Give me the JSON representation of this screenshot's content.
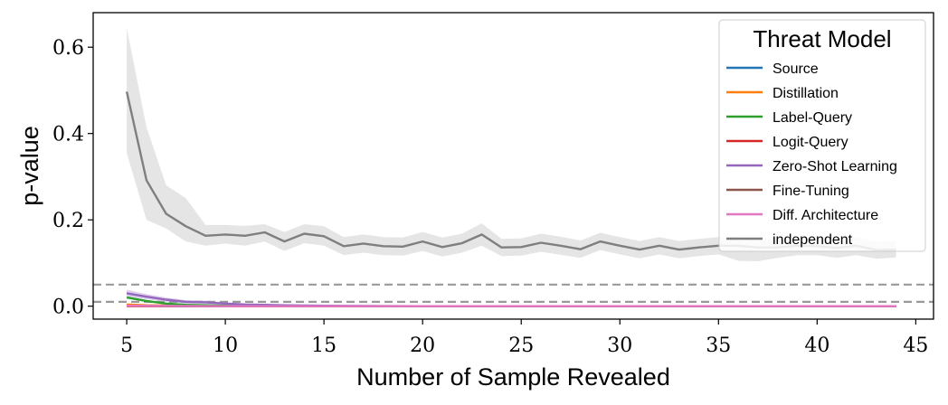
{
  "chart_data": {
    "type": "line",
    "xlabel": "Number of Sample Revealed",
    "ylabel": "p-value",
    "xlim": [
      3.3,
      45.9
    ],
    "ylim": [
      -0.03,
      0.68
    ],
    "xticks": [
      5,
      10,
      15,
      20,
      25,
      30,
      35,
      40,
      45
    ],
    "yticks": [
      0.0,
      0.2,
      0.4,
      0.6
    ],
    "ytick_labels": [
      "0.0",
      "0.2",
      "0.4",
      "0.6"
    ],
    "reference_lines": [
      0.05,
      0.01
    ],
    "legend": {
      "title": "Threat Model",
      "position": "top-right"
    },
    "series": [
      {
        "name": "Source",
        "color": "#1f77b4",
        "points": [
          [
            5,
            0.002
          ],
          [
            6,
            0.001
          ],
          [
            8,
            0.0005
          ],
          [
            10,
            0.0
          ],
          [
            15,
            0.0
          ],
          [
            20,
            0.0
          ],
          [
            25,
            0.0
          ],
          [
            30,
            0.0
          ],
          [
            35,
            0.0
          ],
          [
            40,
            0.0
          ],
          [
            44,
            0.0
          ]
        ]
      },
      {
        "name": "Distillation",
        "color": "#ff7f0e",
        "points": [
          [
            5,
            0.004
          ],
          [
            6,
            0.002
          ],
          [
            8,
            0.001
          ],
          [
            10,
            0.0
          ],
          [
            15,
            0.0
          ],
          [
            20,
            0.0
          ],
          [
            25,
            0.0
          ],
          [
            30,
            0.0
          ],
          [
            35,
            0.0
          ],
          [
            40,
            0.0
          ],
          [
            44,
            0.0
          ]
        ]
      },
      {
        "name": "Label-Query",
        "color": "#2ca02c",
        "points": [
          [
            5,
            0.02
          ],
          [
            6,
            0.012
          ],
          [
            7,
            0.006
          ],
          [
            8,
            0.003
          ],
          [
            9,
            0.002
          ],
          [
            10,
            0.001
          ],
          [
            12,
            0.0
          ],
          [
            15,
            0.0
          ],
          [
            20,
            0.0
          ],
          [
            25,
            0.0
          ],
          [
            30,
            0.0
          ],
          [
            35,
            0.0
          ],
          [
            40,
            0.0
          ],
          [
            44,
            0.0
          ]
        ]
      },
      {
        "name": "Logit-Query",
        "color": "#d62728",
        "points": [
          [
            5,
            0.0
          ],
          [
            10,
            0.0
          ],
          [
            15,
            0.0
          ],
          [
            20,
            0.0
          ],
          [
            25,
            0.0
          ],
          [
            30,
            0.0
          ],
          [
            35,
            0.0
          ],
          [
            40,
            0.0
          ],
          [
            44,
            0.0
          ]
        ]
      },
      {
        "name": "Zero-Shot Learning",
        "color": "#9467bd",
        "points": [
          [
            5,
            0.03
          ],
          [
            6,
            0.022
          ],
          [
            7,
            0.015
          ],
          [
            8,
            0.01
          ],
          [
            9,
            0.009
          ],
          [
            10,
            0.006
          ],
          [
            11,
            0.004
          ],
          [
            12,
            0.003
          ],
          [
            13,
            0.002
          ],
          [
            15,
            0.001
          ],
          [
            20,
            0.0
          ],
          [
            25,
            0.0
          ],
          [
            30,
            0.0
          ],
          [
            35,
            0.0
          ],
          [
            40,
            0.0
          ],
          [
            44,
            0.0
          ]
        ],
        "band": {
          "upper": [
            0.038,
            0.028,
            0.02,
            0.014,
            0.013,
            0.009,
            0.006,
            0.004,
            0.003,
            0.002,
            0.0,
            0.0,
            0.0,
            0.0,
            0.0,
            0.0
          ],
          "lower": [
            0.022,
            0.016,
            0.01,
            0.006,
            0.005,
            0.003,
            0.002,
            0.001,
            0.001,
            0.0,
            0.0,
            0.0,
            0.0,
            0.0,
            0.0,
            0.0
          ]
        }
      },
      {
        "name": "Fine-Tuning",
        "color": "#8c564b",
        "points": [
          [
            5,
            0.001
          ],
          [
            6,
            0.0005
          ],
          [
            8,
            0.0
          ],
          [
            10,
            0.0
          ],
          [
            15,
            0.0
          ],
          [
            20,
            0.0
          ],
          [
            25,
            0.0
          ],
          [
            30,
            0.0
          ],
          [
            35,
            0.0
          ],
          [
            40,
            0.0
          ],
          [
            44,
            0.0
          ]
        ]
      },
      {
        "name": "Diff. Architecture",
        "color": "#e377c2",
        "points": [
          [
            5,
            0.001
          ],
          [
            10,
            0.0
          ],
          [
            15,
            0.0
          ],
          [
            20,
            0.0
          ],
          [
            25,
            0.0
          ],
          [
            30,
            0.0
          ],
          [
            35,
            0.0
          ],
          [
            40,
            0.0
          ],
          [
            44,
            0.0
          ]
        ]
      },
      {
        "name": "independent",
        "color": "#7f7f7f",
        "points": [
          [
            5,
            0.497
          ],
          [
            6,
            0.292
          ],
          [
            7,
            0.214
          ],
          [
            8,
            0.185
          ],
          [
            9,
            0.163
          ],
          [
            10,
            0.166
          ],
          [
            11,
            0.163
          ],
          [
            12,
            0.171
          ],
          [
            13,
            0.15
          ],
          [
            14,
            0.168
          ],
          [
            15,
            0.162
          ],
          [
            16,
            0.139
          ],
          [
            17,
            0.145
          ],
          [
            18,
            0.139
          ],
          [
            19,
            0.138
          ],
          [
            20,
            0.15
          ],
          [
            21,
            0.137
          ],
          [
            22,
            0.146
          ],
          [
            23,
            0.166
          ],
          [
            24,
            0.136
          ],
          [
            25,
            0.137
          ],
          [
            26,
            0.147
          ],
          [
            27,
            0.14
          ],
          [
            28,
            0.132
          ],
          [
            29,
            0.15
          ],
          [
            30,
            0.14
          ],
          [
            31,
            0.131
          ],
          [
            32,
            0.14
          ],
          [
            33,
            0.131
          ],
          [
            34,
            0.136
          ],
          [
            35,
            0.14
          ],
          [
            36,
            0.14
          ],
          [
            37,
            0.136
          ],
          [
            38,
            0.136
          ],
          [
            39,
            0.14
          ],
          [
            40,
            0.139
          ],
          [
            41,
            0.135
          ],
          [
            42,
            0.14
          ],
          [
            43,
            0.13
          ],
          [
            44,
            0.131
          ]
        ],
        "band": {
          "upper": [
            0.645,
            0.415,
            0.28,
            0.25,
            0.188,
            0.188,
            0.186,
            0.19,
            0.172,
            0.19,
            0.185,
            0.16,
            0.166,
            0.16,
            0.159,
            0.172,
            0.159,
            0.168,
            0.192,
            0.156,
            0.157,
            0.168,
            0.161,
            0.152,
            0.17,
            0.16,
            0.151,
            0.16,
            0.151,
            0.156,
            0.16,
            0.16,
            0.156,
            0.156,
            0.16,
            0.159,
            0.155,
            0.16,
            0.15,
            0.151
          ],
          "lower": [
            0.355,
            0.2,
            0.18,
            0.15,
            0.14,
            0.145,
            0.14,
            0.15,
            0.128,
            0.146,
            0.14,
            0.118,
            0.124,
            0.118,
            0.117,
            0.128,
            0.115,
            0.124,
            0.14,
            0.116,
            0.117,
            0.126,
            0.119,
            0.112,
            0.13,
            0.12,
            0.111,
            0.12,
            0.111,
            0.116,
            0.12,
            0.105,
            0.104,
            0.112,
            0.118,
            0.118,
            0.112,
            0.118,
            0.11,
            0.113
          ]
        }
      }
    ]
  }
}
